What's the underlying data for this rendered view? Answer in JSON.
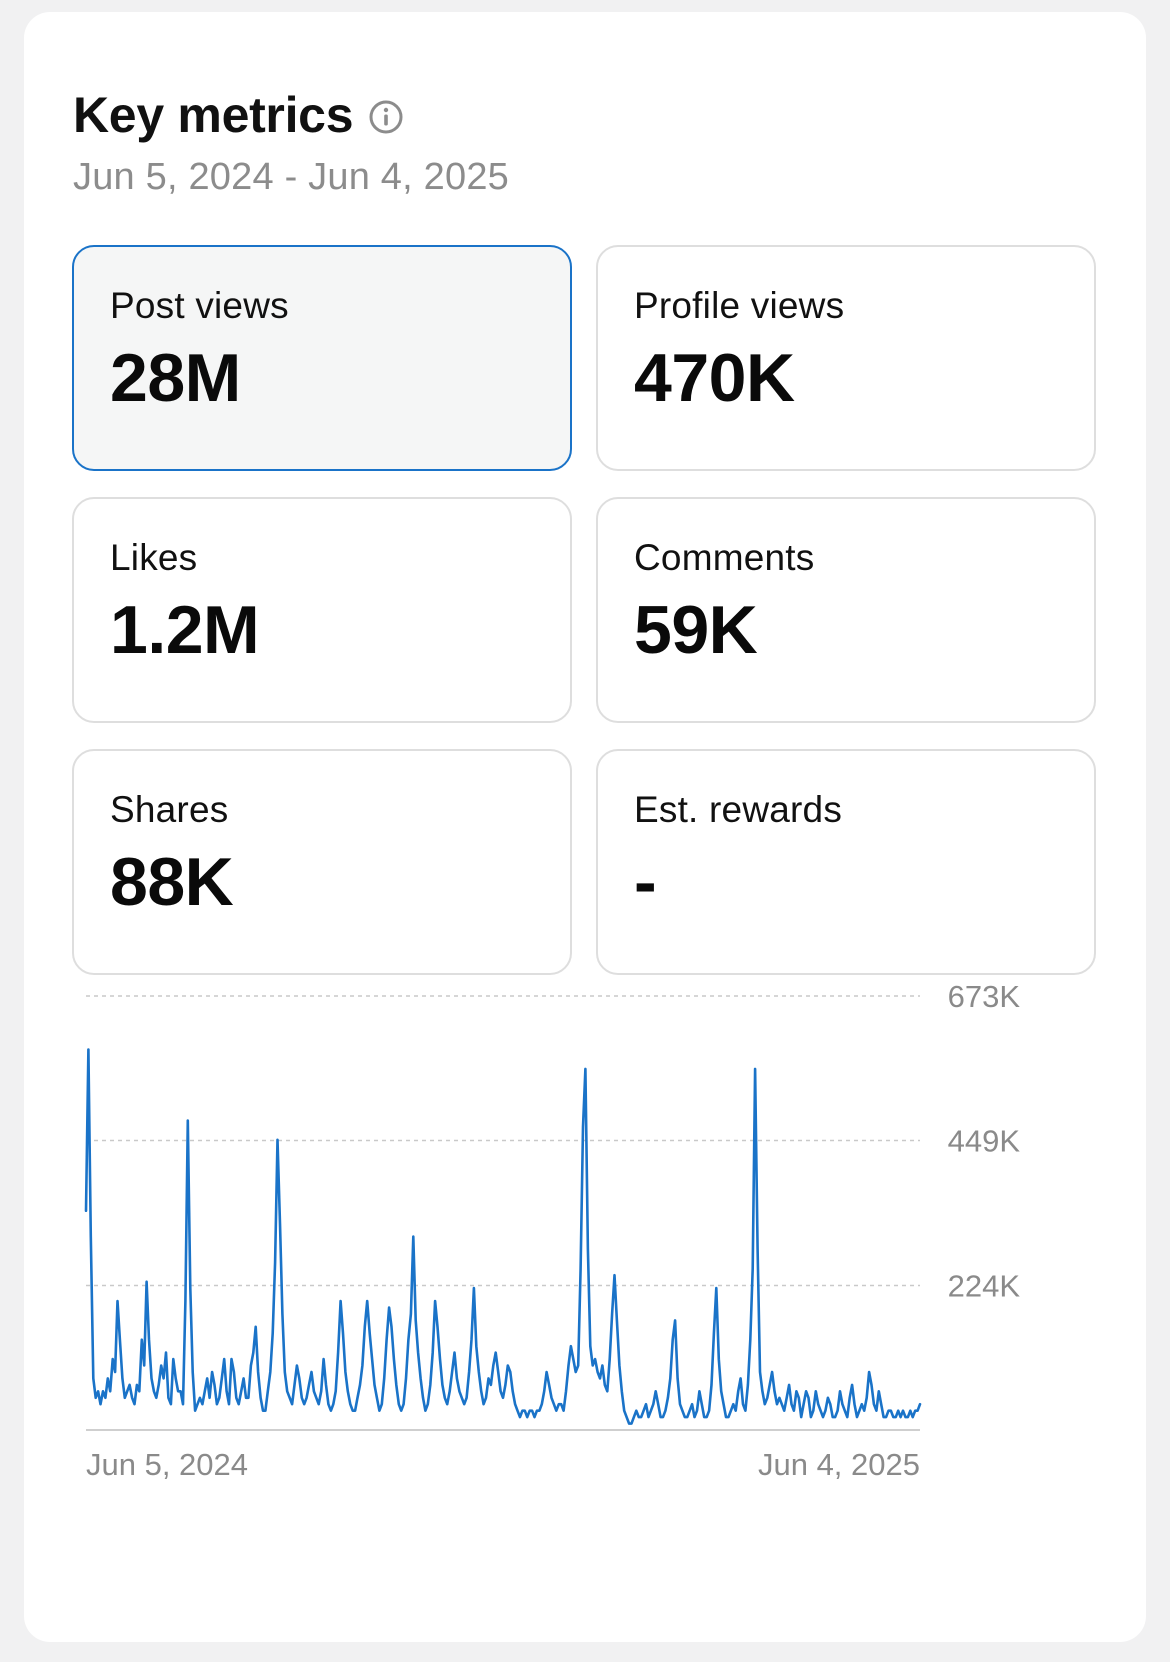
{
  "header": {
    "title": "Key metrics",
    "date_range": "Jun 5, 2024 - Jun 4, 2025"
  },
  "icons": {
    "info": "info-circle-icon"
  },
  "metrics": [
    {
      "label": "Post views",
      "value": "28M",
      "selected": true
    },
    {
      "label": "Profile views",
      "value": "470K",
      "selected": false
    },
    {
      "label": "Likes",
      "value": "1.2M",
      "selected": false
    },
    {
      "label": "Comments",
      "value": "59K",
      "selected": false
    },
    {
      "label": "Shares",
      "value": "88K",
      "selected": false
    },
    {
      "label": "Est. rewards",
      "value": "-",
      "selected": false
    }
  ],
  "colors": {
    "accent": "#1a73c8",
    "line": "#1a73c8",
    "muted_text": "#8c8c8c",
    "tile_border": "#dedede"
  },
  "chart_data": {
    "type": "line",
    "x_start": "Jun 5, 2024",
    "x_end": "Jun 4, 2025",
    "x_tick_labels": [
      "Jun 5, 2024",
      "Jun 4, 2025"
    ],
    "y_ticks": [
      {
        "value": 224000,
        "label": "224K"
      },
      {
        "value": 449000,
        "label": "449K"
      },
      {
        "value": 673000,
        "label": "673K"
      }
    ],
    "ylim": [
      0,
      673000
    ],
    "grid": "horizontal-dashed",
    "series": [
      {
        "values": [
          340000,
          590000,
          300000,
          80000,
          50000,
          60000,
          40000,
          60000,
          50000,
          80000,
          60000,
          110000,
          90000,
          200000,
          140000,
          80000,
          50000,
          60000,
          70000,
          50000,
          40000,
          70000,
          60000,
          140000,
          100000,
          230000,
          140000,
          80000,
          60000,
          50000,
          70000,
          100000,
          80000,
          120000,
          50000,
          40000,
          110000,
          80000,
          60000,
          60000,
          40000,
          200000,
          480000,
          220000,
          90000,
          30000,
          40000,
          50000,
          40000,
          60000,
          80000,
          50000,
          90000,
          70000,
          40000,
          50000,
          80000,
          110000,
          60000,
          40000,
          110000,
          90000,
          50000,
          40000,
          60000,
          80000,
          50000,
          50000,
          100000,
          120000,
          160000,
          90000,
          50000,
          30000,
          30000,
          60000,
          90000,
          150000,
          260000,
          450000,
          320000,
          180000,
          90000,
          60000,
          50000,
          40000,
          70000,
          100000,
          80000,
          50000,
          40000,
          50000,
          70000,
          90000,
          60000,
          50000,
          40000,
          60000,
          110000,
          70000,
          40000,
          30000,
          40000,
          60000,
          120000,
          200000,
          150000,
          90000,
          60000,
          40000,
          30000,
          30000,
          50000,
          70000,
          100000,
          160000,
          200000,
          150000,
          110000,
          70000,
          50000,
          30000,
          40000,
          80000,
          140000,
          190000,
          160000,
          110000,
          70000,
          40000,
          30000,
          40000,
          80000,
          140000,
          180000,
          300000,
          170000,
          120000,
          80000,
          50000,
          30000,
          40000,
          70000,
          120000,
          200000,
          160000,
          110000,
          70000,
          50000,
          40000,
          60000,
          90000,
          120000,
          80000,
          60000,
          50000,
          40000,
          50000,
          90000,
          140000,
          220000,
          130000,
          90000,
          60000,
          40000,
          50000,
          80000,
          70000,
          100000,
          120000,
          90000,
          60000,
          50000,
          70000,
          100000,
          90000,
          60000,
          40000,
          30000,
          20000,
          30000,
          30000,
          20000,
          30000,
          30000,
          20000,
          30000,
          30000,
          40000,
          60000,
          90000,
          70000,
          50000,
          40000,
          30000,
          40000,
          40000,
          30000,
          60000,
          100000,
          130000,
          110000,
          90000,
          100000,
          250000,
          470000,
          560000,
          280000,
          130000,
          100000,
          110000,
          90000,
          80000,
          100000,
          70000,
          60000,
          110000,
          180000,
          240000,
          170000,
          100000,
          60000,
          30000,
          20000,
          10000,
          10000,
          20000,
          30000,
          20000,
          20000,
          30000,
          40000,
          20000,
          30000,
          40000,
          60000,
          40000,
          20000,
          20000,
          30000,
          50000,
          80000,
          140000,
          170000,
          80000,
          40000,
          30000,
          20000,
          20000,
          30000,
          40000,
          20000,
          30000,
          60000,
          40000,
          20000,
          20000,
          30000,
          70000,
          150000,
          220000,
          110000,
          60000,
          40000,
          20000,
          20000,
          30000,
          40000,
          30000,
          60000,
          80000,
          40000,
          30000,
          70000,
          140000,
          250000,
          560000,
          280000,
          90000,
          60000,
          40000,
          50000,
          70000,
          90000,
          60000,
          40000,
          50000,
          40000,
          30000,
          50000,
          70000,
          40000,
          30000,
          60000,
          50000,
          20000,
          40000,
          60000,
          50000,
          20000,
          30000,
          60000,
          40000,
          30000,
          20000,
          30000,
          50000,
          40000,
          20000,
          20000,
          30000,
          60000,
          40000,
          30000,
          20000,
          50000,
          70000,
          40000,
          20000,
          30000,
          40000,
          30000,
          50000,
          90000,
          70000,
          40000,
          30000,
          60000,
          40000,
          20000,
          20000,
          30000,
          30000,
          20000,
          20000,
          30000,
          20000,
          30000,
          20000,
          20000,
          30000,
          20000,
          30000,
          30000,
          40000
        ]
      }
    ]
  }
}
